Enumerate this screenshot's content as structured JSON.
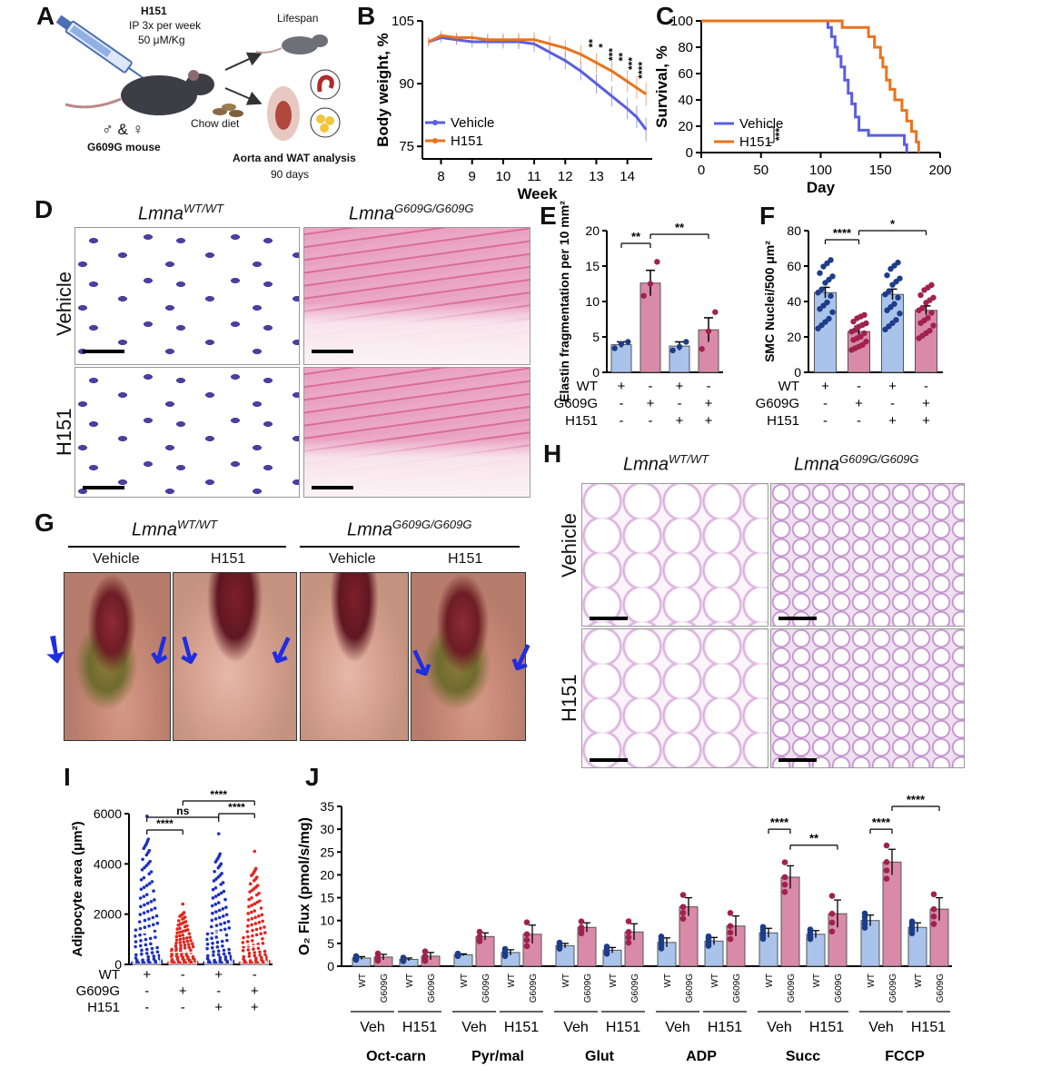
{
  "panel_letters": [
    "A",
    "B",
    "C",
    "D",
    "E",
    "F",
    "G",
    "H",
    "I",
    "J"
  ],
  "panelA": {
    "drug": "H151",
    "dose_line1": "IP 3x per week",
    "dose_line2": "50 μM/Kg",
    "sexes": "♂ & ♀",
    "mouse": "G609G mouse",
    "diet": "Chow diet",
    "lifespan": "Lifespan",
    "analysis": "Aorta and WAT analysis",
    "duration": "90 days"
  },
  "panelD": {
    "col1_gene": "Lmna",
    "col1_sup": "WT/WT",
    "col2_gene": "Lmna",
    "col2_sup": "G609G/G609G",
    "row1": "Vehicle",
    "row2": "H151"
  },
  "panelG": {
    "col1_gene": "Lmna",
    "col1_sup": "WT/WT",
    "col2_gene": "Lmna",
    "col2_sup": "G609G/G609G",
    "sub1": "Vehicle",
    "sub2": "H151",
    "sub3": "Vehicle",
    "sub4": "H151"
  },
  "panelH": {
    "col1_gene": "Lmna",
    "col1_sup": "WT/WT",
    "col2_gene": "Lmna",
    "col2_sup": "G609G/G609G",
    "row1": "Vehicle",
    "row2": "H151"
  },
  "chart_data": [
    {
      "id": "B",
      "type": "line",
      "xlabel": "Week",
      "ylabel": "Body weight, %",
      "xticks": [
        8,
        9,
        10,
        11,
        12,
        13,
        14
      ],
      "yticks": [
        75,
        90,
        105
      ],
      "xlim": [
        7.4,
        14.8
      ],
      "ylim": [
        72,
        105
      ],
      "series": [
        {
          "name": "Vehicle",
          "color": "#5a5ee0",
          "x": [
            7.6,
            8,
            8.5,
            9,
            9.5,
            10,
            10.5,
            11,
            11.5,
            12,
            12.5,
            13,
            13.5,
            14,
            14.3,
            14.6
          ],
          "y": [
            100,
            101,
            100.5,
            100,
            100,
            100,
            100,
            99.5,
            97.5,
            95.5,
            93,
            90,
            87,
            84,
            82,
            79
          ]
        },
        {
          "name": "H151",
          "color": "#e8731c",
          "x": [
            7.6,
            8,
            8.5,
            9,
            9.5,
            10,
            10.5,
            11,
            11.5,
            12,
            12.5,
            13,
            13.5,
            14,
            14.3,
            14.6
          ],
          "y": [
            100,
            101.5,
            101,
            101,
            100.5,
            100.5,
            100.5,
            100.5,
            99.5,
            98.5,
            97,
            95,
            93,
            90.5,
            89,
            87.5
          ]
        }
      ],
      "significance": [
        "**",
        "*",
        "***",
        "**",
        "***",
        "****"
      ]
    },
    {
      "id": "C",
      "type": "line",
      "xlabel": "Day",
      "ylabel": "Survival, %",
      "xticks": [
        0,
        50,
        100,
        150,
        200
      ],
      "yticks": [
        0,
        20,
        40,
        60,
        80,
        100
      ],
      "xlim": [
        0,
        200
      ],
      "ylim": [
        0,
        100
      ],
      "series": [
        {
          "name": "Vehicle",
          "color": "#5a5ee0",
          "x": [
            0,
            103,
            106,
            109,
            112,
            114,
            117,
            120,
            123,
            126,
            129,
            132,
            140,
            150,
            165,
            170,
            172
          ],
          "y": [
            100,
            100,
            95,
            88,
            80,
            73,
            65,
            55,
            45,
            37,
            27,
            17,
            13,
            13,
            13,
            6,
            0
          ]
        },
        {
          "name": "H151",
          "color": "#e8731c",
          "x": [
            0,
            112,
            118,
            135,
            140,
            145,
            150,
            152,
            155,
            158,
            162,
            168,
            172,
            176,
            180,
            182
          ],
          "y": [
            100,
            100,
            95,
            95,
            88,
            80,
            72,
            65,
            55,
            48,
            40,
            32,
            24,
            16,
            8,
            0
          ]
        }
      ],
      "significance": "***"
    },
    {
      "id": "E",
      "type": "bar",
      "ylabel": "Elastin fragmentation per 10 mm²",
      "yticks": [
        0,
        5,
        10,
        15,
        20
      ],
      "ylim": [
        0,
        20
      ],
      "categories": [
        "WT Vehicle",
        "G609G Vehicle",
        "WT H151",
        "G609G H151"
      ],
      "values": [
        3.9,
        12.6,
        3.7,
        6.0
      ],
      "errors": [
        0.4,
        1.8,
        0.6,
        1.7
      ],
      "points": [
        [
          3.4,
          4.0,
          4.3
        ],
        [
          10.8,
          12.5,
          15.6
        ],
        [
          3.1,
          3.6,
          4.3
        ],
        [
          3.3,
          5.8,
          8.5
        ]
      ],
      "colors": [
        "#a9c3ea",
        "#d98aa8",
        "#a9c3ea",
        "#d98aa8"
      ],
      "point_colors": [
        "#1d3c8a",
        "#a1214d",
        "#1d3c8a",
        "#a1214d"
      ],
      "row_labels": [
        "WT",
        "G609G",
        "H151"
      ],
      "row_values": [
        [
          "+",
          "-",
          "+",
          "-"
        ],
        [
          "-",
          "+",
          "-",
          "+"
        ],
        [
          "-",
          "-",
          "+",
          "+"
        ]
      ],
      "significance": [
        "**",
        "**"
      ]
    },
    {
      "id": "F",
      "type": "bar",
      "ylabel": "SMC Nuclei/500 μm²",
      "yticks": [
        0,
        20,
        40,
        60,
        80
      ],
      "ylim": [
        0,
        80
      ],
      "categories": [
        "WT Vehicle",
        "G609G Vehicle",
        "WT H151",
        "G609G H151"
      ],
      "values": [
        45,
        23,
        44,
        35
      ],
      "errors": [
        3,
        3,
        3,
        2.5
      ],
      "colors": [
        "#a9c3ea",
        "#d98aa8",
        "#a9c3ea",
        "#d98aa8"
      ],
      "point_colors": [
        "#1d3c8a",
        "#a1214d",
        "#1d3c8a",
        "#a1214d"
      ],
      "row_labels": [
        "WT",
        "G609G",
        "H151"
      ],
      "row_values": [
        [
          "+",
          "-",
          "+",
          "-"
        ],
        [
          "-",
          "+",
          "-",
          "+"
        ],
        [
          "-",
          "-",
          "+",
          "+"
        ]
      ],
      "significance": [
        "****",
        "*"
      ]
    },
    {
      "id": "I",
      "type": "scatter",
      "ylabel": "Adipocyte area (μm²)",
      "yticks": [
        0,
        2000,
        4000,
        6000
      ],
      "ylim": [
        0,
        6000
      ],
      "categories": [
        "WT Vehicle",
        "G609G Vehicle",
        "WT H151",
        "G609G H151"
      ],
      "values": [
        1250,
        480,
        1300,
        750
      ],
      "maxima": [
        5900,
        2400,
        5200,
        4500
      ],
      "point_colors": [
        "#1d2fbf",
        "#e3261f",
        "#1d2fbf",
        "#e3261f"
      ],
      "row_labels": [
        "WT",
        "G609G",
        "H151"
      ],
      "row_values": [
        [
          "+",
          "-",
          "+",
          "-"
        ],
        [
          "-",
          "+",
          "-",
          "+"
        ],
        [
          "-",
          "-",
          "+",
          "+"
        ]
      ],
      "significance": [
        "****",
        "ns",
        "****",
        "****"
      ]
    },
    {
      "id": "J",
      "type": "bar",
      "ylabel": "O₂ Flux (pmol/s/mg)",
      "yticks": [
        0,
        5,
        10,
        15,
        20,
        25,
        30,
        35
      ],
      "ylim": [
        0,
        35
      ],
      "groups": [
        "Oct-carn",
        "Pyr/mal",
        "Glut",
        "ADP",
        "Succ",
        "FCCP"
      ],
      "treatments": [
        "Veh",
        "H151"
      ],
      "genotypes": [
        "WT",
        "G609G"
      ],
      "values": [
        [
          1.8,
          2.0,
          1.5,
          2.2
        ],
        [
          2.5,
          6.5,
          3.0,
          7.0
        ],
        [
          4.5,
          8.5,
          3.5,
          7.5
        ],
        [
          5.2,
          13.0,
          5.5,
          8.8
        ],
        [
          7.3,
          19.5,
          7.0,
          11.5
        ],
        [
          10.0,
          22.8,
          8.5,
          12.5
        ]
      ],
      "errors": [
        [
          0.3,
          0.6,
          0.3,
          0.8
        ],
        [
          0.2,
          0.8,
          0.6,
          2.0
        ],
        [
          0.5,
          1.0,
          0.6,
          1.8
        ],
        [
          1.0,
          2.0,
          0.8,
          2.2
        ],
        [
          1.0,
          2.5,
          0.8,
          3.0
        ],
        [
          1.2,
          2.8,
          1.0,
          2.5
        ]
      ],
      "colors": [
        "#a9c3ea",
        "#d98aa8",
        "#a9c3ea",
        "#d98aa8"
      ],
      "point_colors": [
        "#1d3c8a",
        "#a1214d",
        "#1d3c8a",
        "#a1214d"
      ],
      "significance_succ": [
        "****",
        "**"
      ],
      "significance_fccp": [
        "****",
        "****"
      ]
    }
  ]
}
